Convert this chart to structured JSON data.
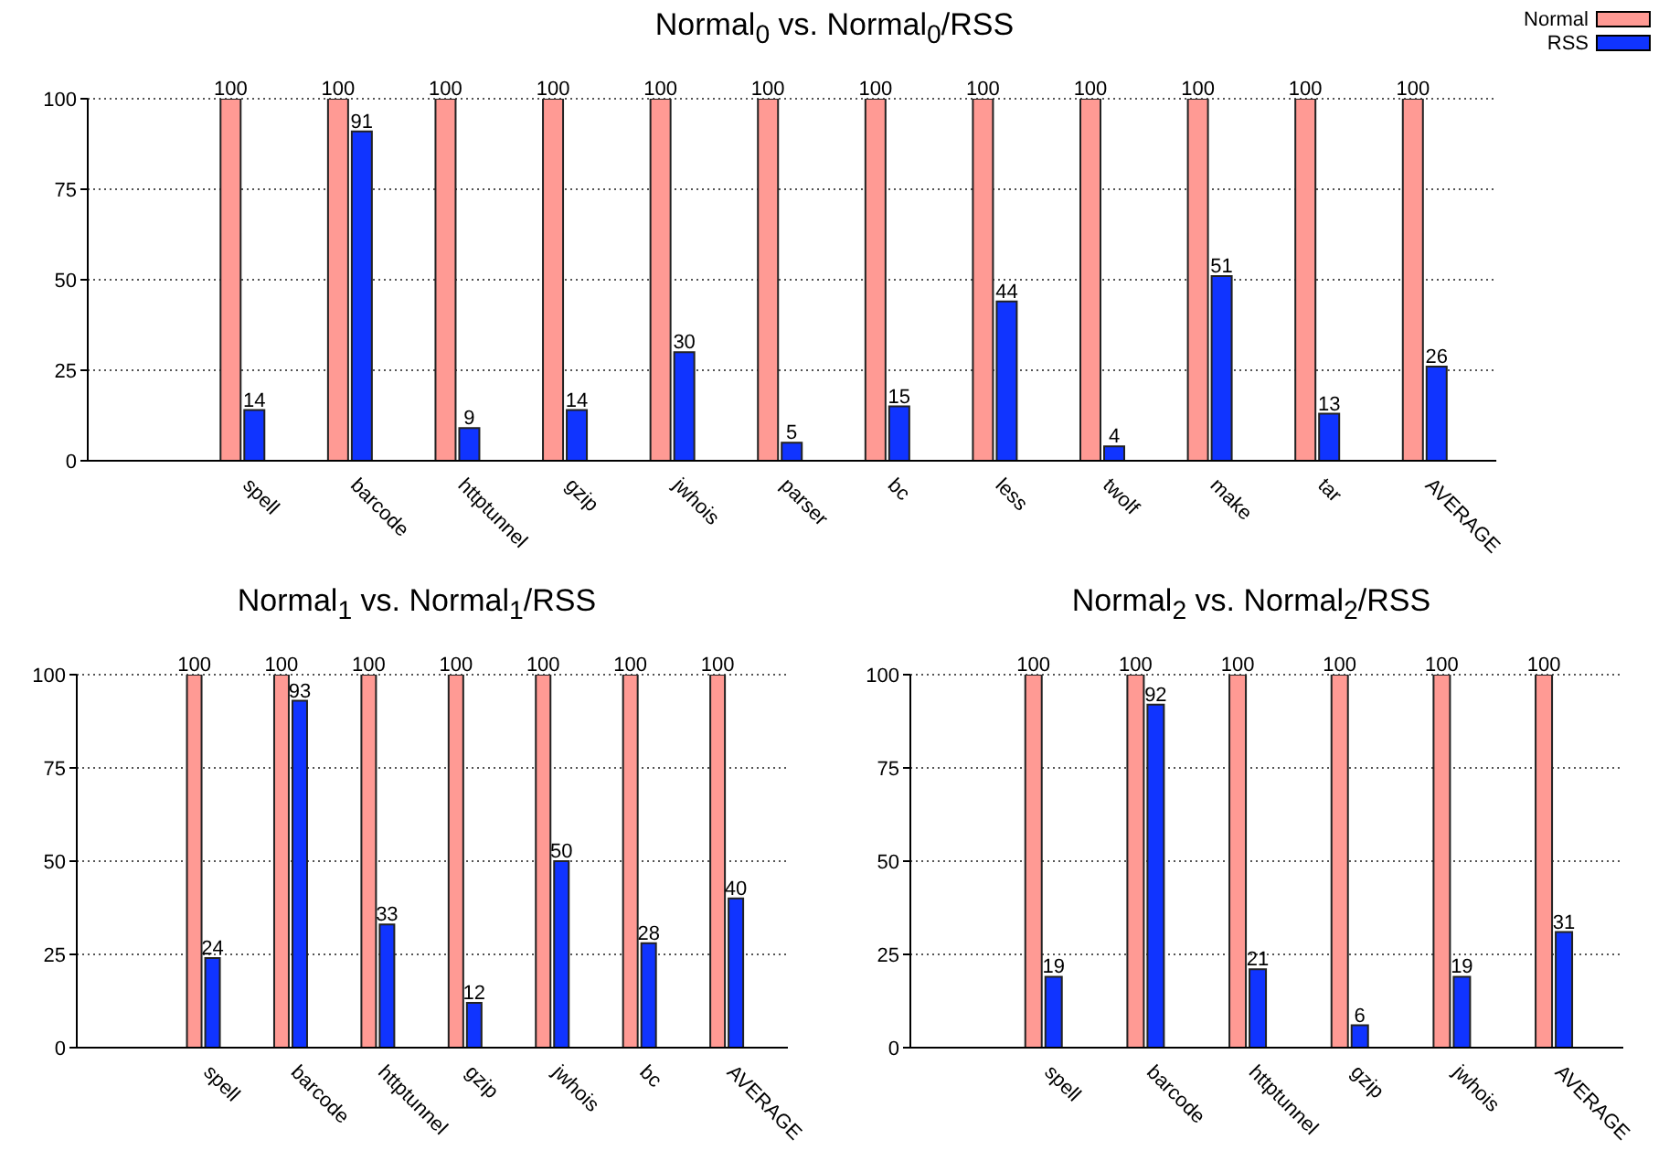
{
  "chart_data": [
    {
      "type": "bar",
      "title": "Normal$_{0}$ vs. Normal$_{0}$/RSS",
      "categories": [
        "spell",
        "barcode",
        "httptunnel",
        "gzip",
        "jwhois",
        "parser",
        "bc",
        "less",
        "twolf",
        "make",
        "tar",
        "AVERAGE"
      ],
      "series": [
        {
          "name": "Normal",
          "color": "#ff9a94",
          "values": [
            100,
            100,
            100,
            100,
            100,
            100,
            100,
            100,
            100,
            100,
            100,
            100
          ]
        },
        {
          "name": "RSS",
          "color": "#1034ff",
          "values": [
            14,
            91,
            9,
            14,
            30,
            5,
            15,
            44,
            4,
            51,
            13,
            26
          ]
        }
      ],
      "ylim": [
        0,
        100
      ],
      "yticks": [
        0,
        25,
        50,
        75,
        100
      ],
      "grid": "y",
      "legend": "top right",
      "data_labels": true
    },
    {
      "type": "bar",
      "title": "Normal$_{1}$ vs. Normal$_{1}$/RSS",
      "categories": [
        "spell",
        "barcode",
        "httptunnel",
        "gzip",
        "jwhois",
        "bc",
        "AVERAGE"
      ],
      "series": [
        {
          "color": "#ff9a94",
          "values": [
            100,
            100,
            100,
            100,
            100,
            100,
            100
          ]
        },
        {
          "color": "#1034ff",
          "values": [
            24,
            93,
            33,
            12,
            50,
            28,
            40
          ]
        }
      ],
      "ylim": [
        0,
        100
      ],
      "yticks": [
        0,
        25,
        50,
        75,
        100
      ],
      "grid": "y",
      "data_labels": true
    },
    {
      "type": "bar",
      "title": "Normal$_{2}$ vs. Normal$_{2}$/RSS",
      "categories": [
        "spell",
        "barcode",
        "httptunnel",
        "gzip",
        "jwhois",
        "AVERAGE"
      ],
      "series": [
        {
          "color": "#ff9a94",
          "values": [
            100,
            100,
            100,
            100,
            100,
            100
          ]
        },
        {
          "color": "#1034ff",
          "values": [
            19,
            92,
            21,
            6,
            19,
            31
          ]
        }
      ],
      "ylim": [
        0,
        100
      ],
      "yticks": [
        0,
        25,
        50,
        75,
        100
      ],
      "grid": "y",
      "data_labels": true
    }
  ]
}
